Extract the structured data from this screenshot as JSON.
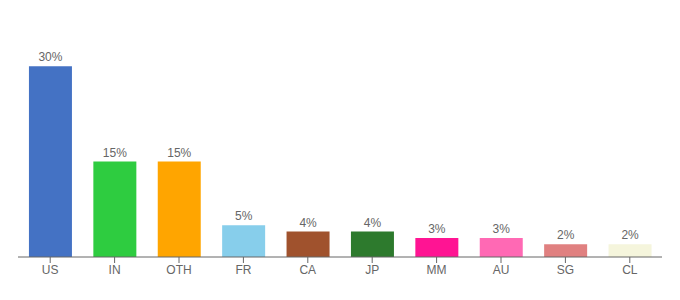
{
  "chart_data": {
    "type": "bar",
    "categories": [
      "US",
      "IN",
      "OTH",
      "FR",
      "CA",
      "JP",
      "MM",
      "AU",
      "SG",
      "CL"
    ],
    "values": [
      30,
      15,
      15,
      5,
      4,
      4,
      3,
      3,
      2,
      2
    ],
    "value_labels": [
      "30%",
      "15%",
      "15%",
      "5%",
      "4%",
      "4%",
      "3%",
      "3%",
      "2%",
      "2%"
    ],
    "colors": [
      "#4472C4",
      "#2ECC40",
      "#FFA500",
      "#87CEEB",
      "#A0522D",
      "#2D7A2D",
      "#FF1493",
      "#FF69B4",
      "#E08080",
      "#F5F5DC"
    ],
    "ylim": [
      0,
      36
    ],
    "data_labels": true,
    "tick_labels": "x",
    "grid": false
  }
}
